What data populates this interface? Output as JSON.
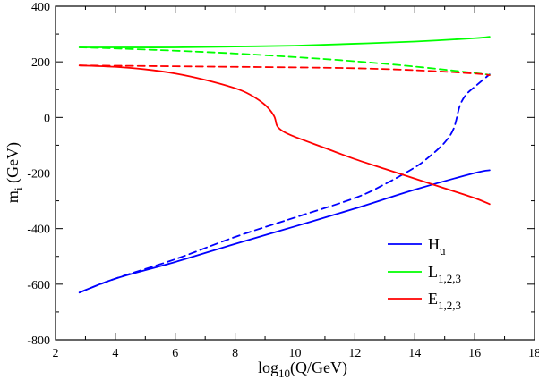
{
  "chart_data": {
    "type": "line",
    "title": "",
    "xlabel": {
      "main": "log",
      "sub": "10",
      "rest": "(Q/GeV)"
    },
    "ylabel": {
      "main": "m",
      "sub": "i",
      "rest": " (GeV)"
    },
    "xlim": [
      2,
      18
    ],
    "ylim": [
      -800,
      400
    ],
    "x_ticks": [
      2,
      4,
      6,
      8,
      10,
      12,
      14,
      16,
      18
    ],
    "x_tick_labels": [
      "2",
      "4",
      "6",
      "8",
      "10",
      "12",
      "14",
      "16",
      "18"
    ],
    "y_ticks": [
      -800,
      -600,
      -400,
      -200,
      0,
      200,
      400
    ],
    "y_tick_labels": [
      "-800",
      "-600",
      "-400",
      "-200",
      "0",
      "200",
      "400"
    ],
    "x_minor_step": 1,
    "y_minor_step": 100,
    "grid": false,
    "legend": {
      "position": "bottom-right",
      "entries": [
        {
          "main": "H",
          "sub": "u",
          "color": "#0000ff"
        },
        {
          "main": "L",
          "sub": "1,2,3",
          "color": "#00ff00"
        },
        {
          "main": "E",
          "sub": "1,2,3",
          "color": "#ff0000"
        }
      ]
    },
    "series": [
      {
        "name": "H_u solid",
        "color": "#0000ff",
        "dashed": false,
        "points": [
          [
            2.8,
            -630
          ],
          [
            4,
            -580
          ],
          [
            6,
            -520
          ],
          [
            8,
            -455
          ],
          [
            10,
            -392
          ],
          [
            12,
            -328
          ],
          [
            14,
            -260
          ],
          [
            16,
            -200
          ],
          [
            16.5,
            -190
          ]
        ]
      },
      {
        "name": "H_u dashed",
        "color": "#0000ff",
        "dashed": true,
        "points": [
          [
            2.8,
            -630
          ],
          [
            4,
            -580
          ],
          [
            6,
            -510
          ],
          [
            8,
            -430
          ],
          [
            10,
            -360
          ],
          [
            12,
            -290
          ],
          [
            13,
            -240
          ],
          [
            14,
            -180
          ],
          [
            14.5,
            -140
          ],
          [
            15.0,
            -90
          ],
          [
            15.3,
            -40
          ],
          [
            15.5,
            40
          ],
          [
            15.7,
            80
          ],
          [
            16.0,
            110
          ],
          [
            16.5,
            155
          ]
        ]
      },
      {
        "name": "L_123 solid",
        "color": "#00ff00",
        "dashed": false,
        "points": [
          [
            2.8,
            252
          ],
          [
            4,
            252
          ],
          [
            6,
            252
          ],
          [
            8,
            255
          ],
          [
            10,
            258
          ],
          [
            12,
            265
          ],
          [
            14,
            273
          ],
          [
            16,
            285
          ],
          [
            16.5,
            290
          ]
        ]
      },
      {
        "name": "L_123 dashed",
        "color": "#00ff00",
        "dashed": true,
        "points": [
          [
            2.8,
            252
          ],
          [
            4,
            248
          ],
          [
            6,
            240
          ],
          [
            8,
            230
          ],
          [
            10,
            217
          ],
          [
            12,
            202
          ],
          [
            14,
            183
          ],
          [
            16,
            160
          ],
          [
            16.5,
            153
          ]
        ]
      },
      {
        "name": "E_123 solid",
        "color": "#ff0000",
        "dashed": false,
        "points": [
          [
            2.8,
            187
          ],
          [
            4,
            182
          ],
          [
            5,
            173
          ],
          [
            6,
            158
          ],
          [
            7,
            135
          ],
          [
            8,
            105
          ],
          [
            8.5,
            82
          ],
          [
            9.0,
            45
          ],
          [
            9.3,
            5
          ],
          [
            9.4,
            -30
          ],
          [
            9.6,
            -50
          ],
          [
            10,
            -70
          ],
          [
            11,
            -110
          ],
          [
            12,
            -150
          ],
          [
            13,
            -185
          ],
          [
            14,
            -220
          ],
          [
            15,
            -255
          ],
          [
            16,
            -290
          ],
          [
            16.5,
            -312
          ]
        ]
      },
      {
        "name": "E_123 dashed",
        "color": "#ff0000",
        "dashed": true,
        "points": [
          [
            2.8,
            187
          ],
          [
            4,
            186
          ],
          [
            6,
            184
          ],
          [
            8,
            182
          ],
          [
            10,
            180
          ],
          [
            12,
            177
          ],
          [
            14,
            170
          ],
          [
            16,
            158
          ],
          [
            16.5,
            152
          ]
        ]
      }
    ]
  }
}
